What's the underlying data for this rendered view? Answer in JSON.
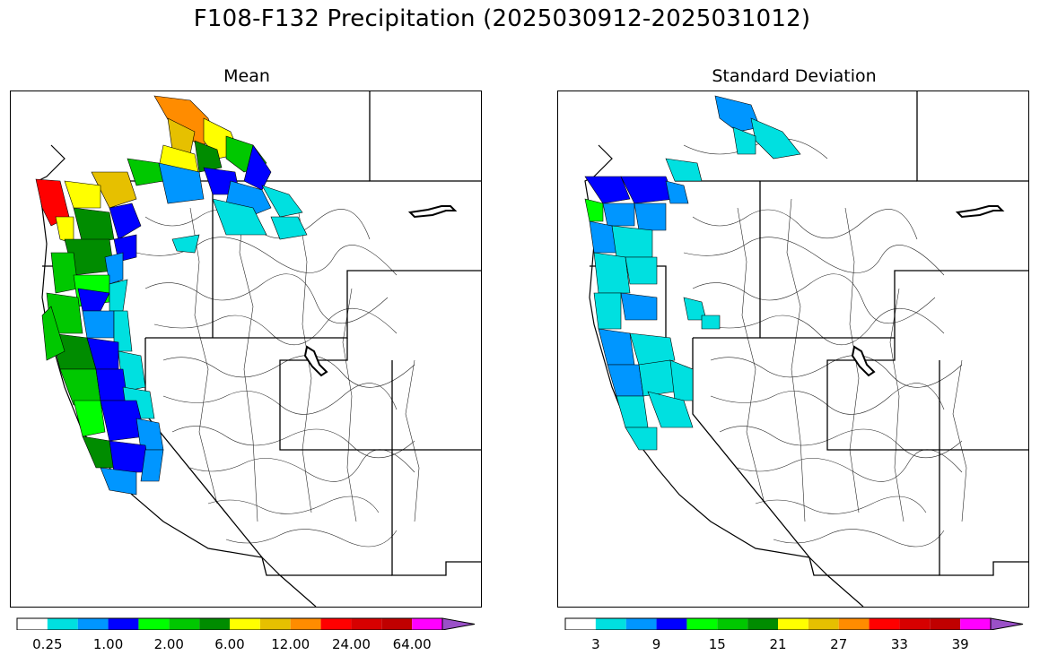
{
  "figure": {
    "title": "F108-F132 Precipitation (2025030912-2025031012)"
  },
  "panels": [
    {
      "title": "Mean",
      "colorbar": {
        "colors": [
          "#ffffff",
          "#00e0e0",
          "#0096ff",
          "#0000ff",
          "#00ff00",
          "#00c800",
          "#008c00",
          "#ffff00",
          "#e6c000",
          "#ff8c00",
          "#ff0000",
          "#d70000",
          "#c00000",
          "#ff00ff",
          "#9a50c8"
        ],
        "extend": "max",
        "tick_labels": [
          "0.25",
          "1.00",
          "2.00",
          "6.00",
          "12.00",
          "24.00",
          "64.00"
        ]
      },
      "legend_dominant": [
        "#00c800",
        "#0000ff",
        "#ffff00",
        "#ff0000"
      ]
    },
    {
      "title": "Standard Deviation",
      "colorbar": {
        "colors": [
          "#ffffff",
          "#00e0e0",
          "#0096ff",
          "#0000ff",
          "#00ff00",
          "#00c800",
          "#008c00",
          "#ffff00",
          "#e6c000",
          "#ff8c00",
          "#ff0000",
          "#d70000",
          "#c00000",
          "#ff00ff",
          "#9a50c8"
        ],
        "extend": "max",
        "tick_labels": [
          "3",
          "9",
          "15",
          "21",
          "27",
          "33",
          "39"
        ]
      },
      "legend_dominant": [
        "#00e0e0",
        "#0096ff",
        "#0000ff",
        "#00ff00"
      ]
    }
  ]
}
